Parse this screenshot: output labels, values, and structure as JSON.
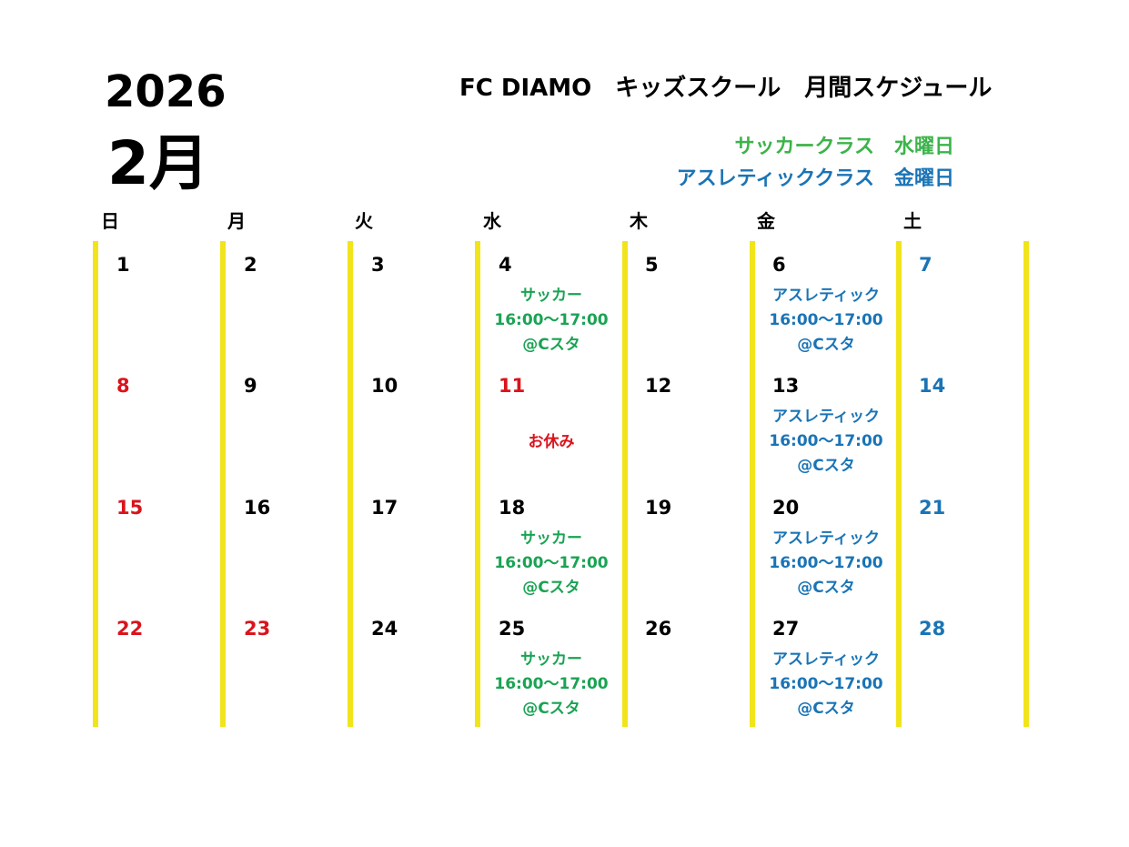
{
  "header": {
    "year": "2026",
    "month": "2月",
    "title": "FC DIAMO　キッズスクール　月間スケジュール",
    "legend_soccer": "サッカークラス　水曜日",
    "legend_athletic": "アスレティッククラス　金曜日"
  },
  "weekdays": [
    "日",
    "月",
    "火",
    "水",
    "木",
    "金",
    "土"
  ],
  "days": {
    "d1": "1",
    "d2": "2",
    "d3": "3",
    "d4": "4",
    "d5": "5",
    "d6": "6",
    "d7": "7",
    "d8": "8",
    "d9": "9",
    "d10": "10",
    "d11": "11",
    "d12": "12",
    "d13": "13",
    "d14": "14",
    "d15": "15",
    "d16": "16",
    "d17": "17",
    "d18": "18",
    "d19": "19",
    "d20": "20",
    "d21": "21",
    "d22": "22",
    "d23": "23",
    "d24": "24",
    "d25": "25",
    "d26": "26",
    "d27": "27",
    "d28": "28"
  },
  "events": {
    "soccer": {
      "name": "サッカー",
      "time": "16:00～17:00",
      "place": "@Cスタ"
    },
    "athletic": {
      "name": "アスレティック",
      "time": "16:00～17:00",
      "place": "@Cスタ"
    },
    "off": "お休み"
  },
  "colors": {
    "column_bar": "#f1e41b",
    "holiday_red": "#d9141c",
    "saturday_blue": "#1a74b6",
    "soccer_green": "#1aa353",
    "athletic_blue": "#1a74b6"
  }
}
